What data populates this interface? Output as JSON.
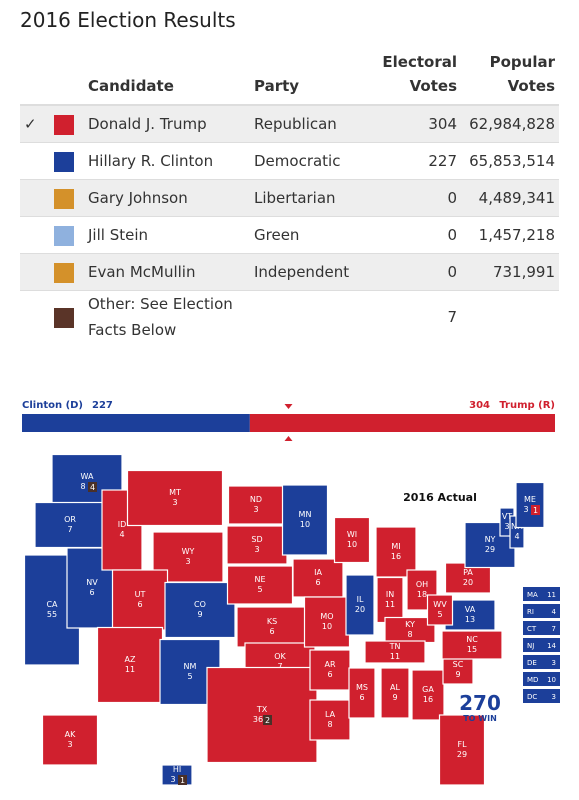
{
  "header": {
    "title": "2016 Election Results"
  },
  "table": {
    "columns": [
      "Candidate",
      "Party",
      "Electoral Votes",
      "Popular Votes"
    ],
    "rows": [
      {
        "mark": "✓",
        "color": "#d0202e",
        "candidate": "Donald J. Trump",
        "party": "Republican",
        "electoral": "304",
        "popular": "62,984,828"
      },
      {
        "color": "#1c3f9a",
        "candidate": "Hillary R. Clinton",
        "party": "Democratic",
        "electoral": "227",
        "popular": "65,853,514"
      },
      {
        "color": "#d4912a",
        "candidate": "Gary Johnson",
        "party": "Libertarian",
        "electoral": "0",
        "popular": "4,489,341"
      },
      {
        "color": "#8fb1de",
        "candidate": "Jill Stein",
        "party": "Green",
        "electoral": "0",
        "popular": "1,457,218"
      },
      {
        "color": "#d4912a",
        "candidate": "Evan McMullin",
        "party": "Independent",
        "electoral": "0",
        "popular": "731,991"
      },
      {
        "color": "#5a3428",
        "candidate": "Other: See Election Facts Below",
        "electoral": "7"
      }
    ]
  },
  "bar": {
    "left_label": "Clinton (D)",
    "left_value": 227,
    "left_color": "#1c3f9a",
    "right_label": "Trump (R)",
    "right_value": 304,
    "right_color": "#d0202e"
  },
  "map": {
    "title": "2016 Actual",
    "logo": "270",
    "logo_sub": "TO WIN",
    "d_color": "#1c3f9a",
    "r_color": "#d0202e",
    "other_color": "#4a3028",
    "states": [
      {
        "abbr": "WA",
        "votes": 8,
        "winner": "D",
        "other": 4
      },
      {
        "abbr": "OR",
        "votes": 7,
        "winner": "D"
      },
      {
        "abbr": "CA",
        "votes": 55,
        "winner": "D"
      },
      {
        "abbr": "NV",
        "votes": 6,
        "winner": "D"
      },
      {
        "abbr": "ID",
        "votes": 4,
        "winner": "R"
      },
      {
        "abbr": "MT",
        "votes": 3,
        "winner": "R"
      },
      {
        "abbr": "WY",
        "votes": 3,
        "winner": "R"
      },
      {
        "abbr": "UT",
        "votes": 6,
        "winner": "R"
      },
      {
        "abbr": "AZ",
        "votes": 11,
        "winner": "R"
      },
      {
        "abbr": "CO",
        "votes": 9,
        "winner": "D"
      },
      {
        "abbr": "NM",
        "votes": 5,
        "winner": "D"
      },
      {
        "abbr": "ND",
        "votes": 3,
        "winner": "R"
      },
      {
        "abbr": "SD",
        "votes": 3,
        "winner": "R"
      },
      {
        "abbr": "NE",
        "votes": 5,
        "winner": "R"
      },
      {
        "abbr": "KS",
        "votes": 6,
        "winner": "R"
      },
      {
        "abbr": "OK",
        "votes": 7,
        "winner": "R"
      },
      {
        "abbr": "TX",
        "votes": 36,
        "winner": "R",
        "other": 2
      },
      {
        "abbr": "MN",
        "votes": 10,
        "winner": "D"
      },
      {
        "abbr": "IA",
        "votes": 6,
        "winner": "R"
      },
      {
        "abbr": "MO",
        "votes": 10,
        "winner": "R"
      },
      {
        "abbr": "AR",
        "votes": 6,
        "winner": "R"
      },
      {
        "abbr": "LA",
        "votes": 8,
        "winner": "R"
      },
      {
        "abbr": "WI",
        "votes": 10,
        "winner": "R"
      },
      {
        "abbr": "IL",
        "votes": 20,
        "winner": "D"
      },
      {
        "abbr": "MS",
        "votes": 6,
        "winner": "R"
      },
      {
        "abbr": "MI",
        "votes": 16,
        "winner": "R"
      },
      {
        "abbr": "IN",
        "votes": 11,
        "winner": "R"
      },
      {
        "abbr": "KY",
        "votes": 8,
        "winner": "R"
      },
      {
        "abbr": "TN",
        "votes": 11,
        "winner": "R"
      },
      {
        "abbr": "AL",
        "votes": 9,
        "winner": "R"
      },
      {
        "abbr": "OH",
        "votes": 18,
        "winner": "R"
      },
      {
        "abbr": "GA",
        "votes": 16,
        "winner": "R"
      },
      {
        "abbr": "FL",
        "votes": 29,
        "winner": "R"
      },
      {
        "abbr": "SC",
        "votes": 9,
        "winner": "R"
      },
      {
        "abbr": "NC",
        "votes": 15,
        "winner": "R"
      },
      {
        "abbr": "VA",
        "votes": 13,
        "winner": "D"
      },
      {
        "abbr": "WV",
        "votes": 5,
        "winner": "R"
      },
      {
        "abbr": "PA",
        "votes": 20,
        "winner": "R"
      },
      {
        "abbr": "NY",
        "votes": 29,
        "winner": "D"
      },
      {
        "abbr": "VT",
        "votes": 3,
        "winner": "D"
      },
      {
        "abbr": "NH",
        "votes": 4,
        "winner": "D"
      },
      {
        "abbr": "ME",
        "votes": 3,
        "winner": "D",
        "other": 1,
        "other_winner": "R"
      },
      {
        "abbr": "AK",
        "votes": 3,
        "winner": "R"
      },
      {
        "abbr": "HI",
        "votes": 3,
        "winner": "D",
        "other": 1
      }
    ],
    "small_states": [
      {
        "abbr": "MA",
        "votes": 11
      },
      {
        "abbr": "RI",
        "votes": 4
      },
      {
        "abbr": "CT",
        "votes": 7
      },
      {
        "abbr": "NJ",
        "votes": 14
      },
      {
        "abbr": "DE",
        "votes": 3
      },
      {
        "abbr": "MD",
        "votes": 10
      },
      {
        "abbr": "DC",
        "votes": 3
      }
    ]
  }
}
